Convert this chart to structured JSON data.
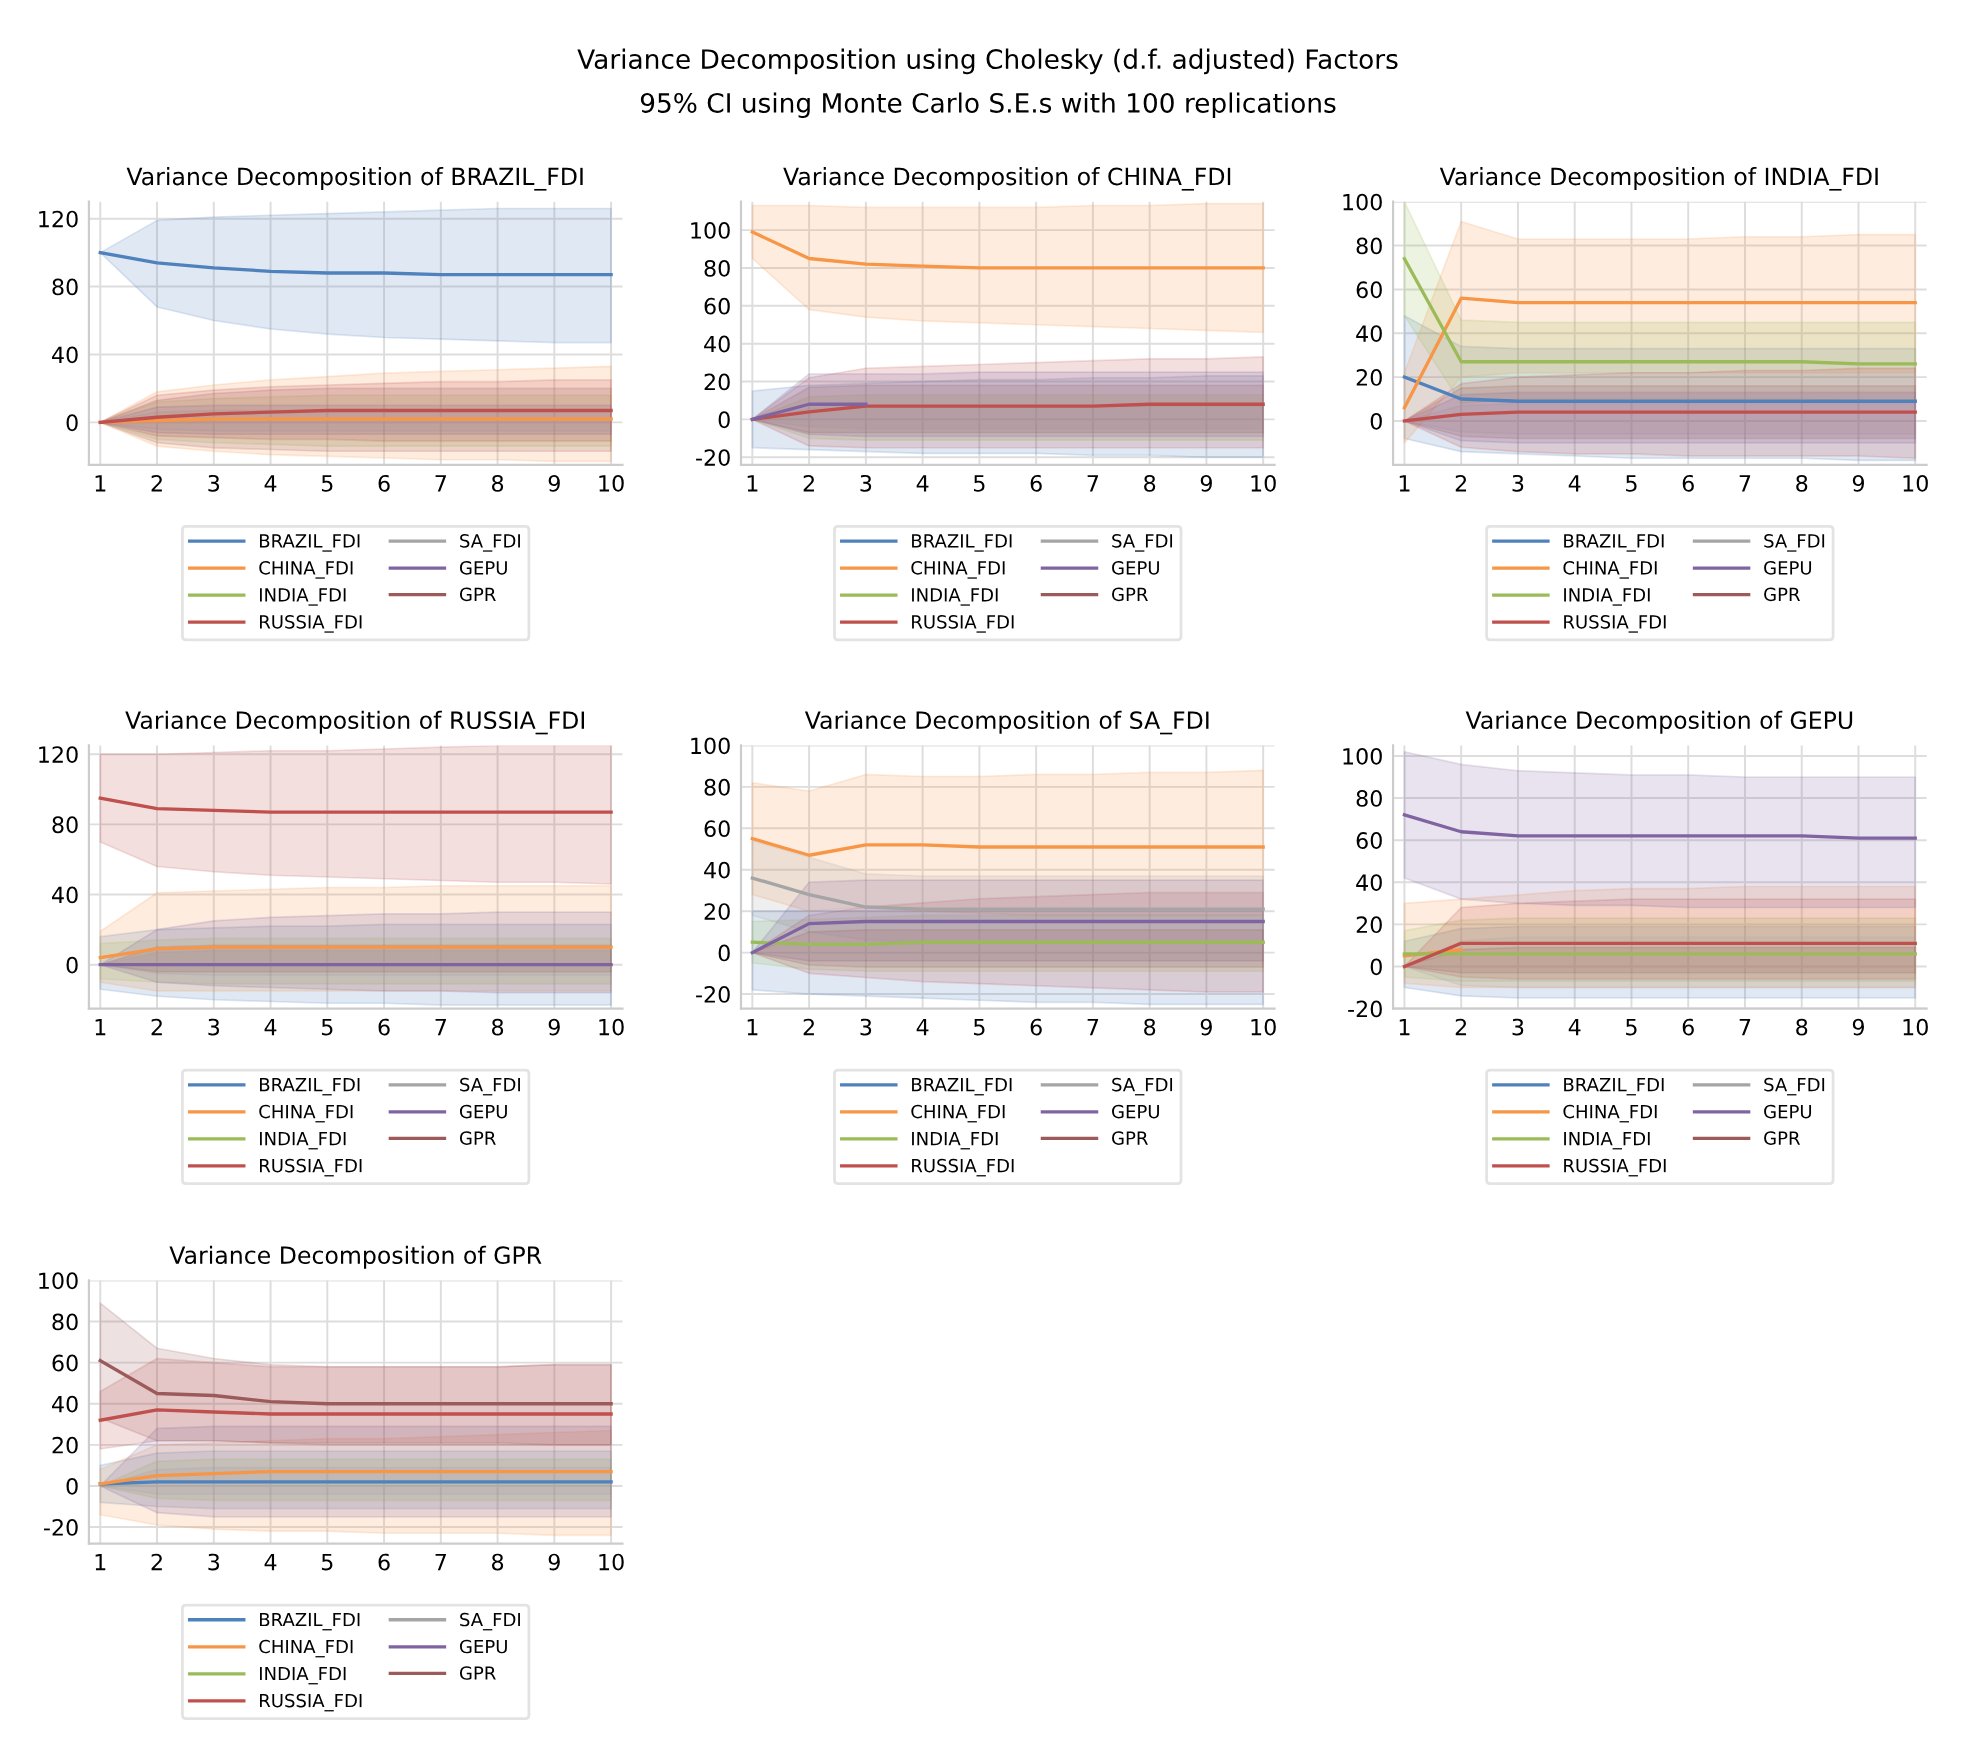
{
  "chart_data": [
    {
      "type": "line",
      "title": "Variance Decomposition of BRAZIL_FDI",
      "annotations": [
        "Variance Decomposition using Cholesky (d.f. adjusted) Factors",
        "95% CI using Monte Carlo S.E.s with 100 replications"
      ],
      "categories": [
        "1",
        "2",
        "3",
        "4",
        "5",
        "6",
        "7",
        "8",
        "9",
        "10"
      ],
      "ylim": [
        -25,
        130
      ],
      "yticks": [
        0,
        40,
        80,
        120
      ],
      "grid": true,
      "legend": "bottom",
      "series": [
        {
          "name": "BRAZIL_FDI",
          "color": "#4f81bd",
          "values": [
            100,
            94,
            91,
            89,
            88,
            88,
            87,
            87,
            87,
            87
          ],
          "lower": [
            100,
            68,
            60,
            55,
            52,
            50,
            49,
            48,
            47,
            47
          ],
          "upper": [
            100,
            119,
            121,
            122,
            123,
            124,
            125,
            126,
            126,
            126
          ]
        },
        {
          "name": "CHINA_FDI",
          "color": "#f79646",
          "values": [
            0,
            1,
            2,
            2,
            2,
            2,
            2,
            2,
            2,
            2
          ],
          "lower": [
            0,
            -14,
            -17,
            -19,
            -20,
            -21,
            -22,
            -22,
            -23,
            -23
          ],
          "upper": [
            0,
            18,
            22,
            25,
            27,
            29,
            30,
            31,
            32,
            33
          ]
        },
        {
          "name": "INDIA_FDI",
          "color": "#9bbb59",
          "values": [
            null,
            null,
            null,
            null,
            null,
            null,
            null,
            null,
            null,
            null
          ],
          "lower": [
            0,
            -10,
            -12,
            -13,
            -14,
            -14,
            -14,
            -14,
            -14,
            -14
          ],
          "upper": [
            0,
            12,
            14,
            15,
            16,
            16,
            16,
            16,
            16,
            16
          ]
        },
        {
          "name": "RUSSIA_FDI",
          "color": "#c0504d",
          "values": [
            0,
            3,
            5,
            6,
            7,
            7,
            7,
            7,
            7,
            7
          ],
          "lower": [
            0,
            -8,
            -9,
            -10,
            -10,
            -11,
            -11,
            -11,
            -11,
            -11
          ],
          "upper": [
            0,
            16,
            19,
            21,
            22,
            23,
            24,
            24,
            25,
            25
          ]
        },
        {
          "name": "SA_FDI",
          "color": "#a5a5a5",
          "values": [
            null,
            null,
            null,
            null,
            null,
            null,
            null,
            null,
            null,
            null
          ],
          "lower": [
            0,
            -4,
            -5,
            -5,
            -5,
            -5,
            -5,
            -5,
            -5,
            -5
          ],
          "upper": [
            0,
            6,
            7,
            7,
            7,
            7,
            7,
            7,
            7,
            7
          ]
        },
        {
          "name": "GEPU",
          "color": "#8064a2",
          "values": [
            null,
            null,
            null,
            null,
            null,
            null,
            null,
            null,
            null,
            null
          ],
          "lower": [
            0,
            -6,
            -7,
            -7,
            -7,
            -7,
            -7,
            -7,
            -7,
            -7
          ],
          "upper": [
            0,
            9,
            10,
            10,
            10,
            10,
            10,
            10,
            10,
            10
          ]
        },
        {
          "name": "GPR",
          "color": "#9c5a5a",
          "values": [
            null,
            null,
            null,
            null,
            null,
            null,
            null,
            null,
            null,
            null
          ],
          "lower": [
            0,
            -12,
            -15,
            -16,
            -17,
            -17,
            -17,
            -17,
            -17,
            -17
          ],
          "upper": [
            0,
            13,
            17,
            19,
            20,
            20,
            20,
            20,
            20,
            20
          ]
        }
      ]
    },
    {
      "type": "line",
      "title": "Variance Decomposition of CHINA_FDI",
      "categories": [
        "1",
        "2",
        "3",
        "4",
        "5",
        "6",
        "7",
        "8",
        "9",
        "10"
      ],
      "ylim": [
        -24,
        115
      ],
      "yticks": [
        -20,
        0,
        20,
        40,
        60,
        80,
        100
      ],
      "grid": true,
      "legend": "bottom",
      "series": [
        {
          "name": "BRAZIL_FDI",
          "color": "#4f81bd",
          "values": [
            null,
            null,
            null,
            null,
            null,
            null,
            null,
            null,
            null,
            null
          ],
          "lower": [
            -15,
            -16,
            -17,
            -18,
            -18,
            -18,
            -19,
            -19,
            -20,
            -20
          ],
          "upper": [
            15,
            18,
            19,
            20,
            21,
            21,
            22,
            22,
            23,
            23
          ]
        },
        {
          "name": "CHINA_FDI",
          "color": "#f79646",
          "values": [
            99,
            85,
            82,
            81,
            80,
            80,
            80,
            80,
            80,
            80
          ],
          "lower": [
            85,
            58,
            54,
            52,
            51,
            50,
            49,
            48,
            47,
            46
          ],
          "upper": [
            113,
            113,
            112,
            112,
            112,
            112,
            113,
            113,
            114,
            114
          ]
        },
        {
          "name": "INDIA_FDI",
          "color": "#9bbb59",
          "values": [
            null,
            null,
            null,
            null,
            null,
            null,
            null,
            null,
            null,
            null
          ],
          "lower": [
            0,
            -10,
            -11,
            -11,
            -11,
            -11,
            -11,
            -11,
            -11,
            -11
          ],
          "upper": [
            0,
            12,
            13,
            13,
            13,
            13,
            13,
            13,
            13,
            13
          ]
        },
        {
          "name": "RUSSIA_FDI",
          "color": "#c0504d",
          "values": [
            0,
            4,
            7,
            7,
            7,
            7,
            7,
            8,
            8,
            8
          ],
          "lower": [
            0,
            -14,
            -15,
            -15,
            -15,
            -15,
            -15,
            -15,
            -15,
            -15
          ],
          "upper": [
            0,
            22,
            27,
            28,
            29,
            30,
            31,
            32,
            32,
            33
          ]
        },
        {
          "name": "SA_FDI",
          "color": "#a5a5a5",
          "values": [
            null,
            null,
            null,
            null,
            null,
            null,
            null,
            null,
            null,
            null
          ],
          "lower": [
            0,
            -4,
            -5,
            -5,
            -5,
            -5,
            -5,
            -5,
            -5,
            -5
          ],
          "upper": [
            0,
            6,
            7,
            7,
            7,
            7,
            7,
            7,
            7,
            7
          ]
        },
        {
          "name": "GEPU",
          "color": "#8064a2",
          "values": [
            0,
            8,
            8,
            null,
            null,
            null,
            null,
            null,
            null,
            null
          ],
          "lower": [
            0,
            -8,
            -9,
            -9,
            -9,
            -9,
            -9,
            -9,
            -9,
            -9
          ],
          "upper": [
            0,
            24,
            24,
            24,
            25,
            25,
            25,
            25,
            25,
            25
          ]
        },
        {
          "name": "GPR",
          "color": "#9c5a5a",
          "values": [
            null,
            null,
            null,
            null,
            null,
            null,
            null,
            null,
            null,
            null
          ],
          "lower": [
            0,
            -7,
            -7,
            -7,
            -7,
            -7,
            -7,
            -7,
            -7,
            -7
          ],
          "upper": [
            0,
            17,
            18,
            18,
            18,
            18,
            18,
            18,
            18,
            18
          ]
        }
      ]
    },
    {
      "type": "line",
      "title": "Variance Decomposition of INDIA_FDI",
      "categories": [
        "1",
        "2",
        "3",
        "4",
        "5",
        "6",
        "7",
        "8",
        "9",
        "10"
      ],
      "ylim": [
        -20,
        100
      ],
      "yticks": [
        0,
        20,
        40,
        60,
        80,
        100
      ],
      "grid": true,
      "legend": "bottom",
      "series": [
        {
          "name": "BRAZIL_FDI",
          "color": "#4f81bd",
          "values": [
            20,
            10,
            9,
            9,
            9,
            9,
            9,
            9,
            9,
            9
          ],
          "lower": [
            -8,
            -14,
            -15,
            -16,
            -17,
            -17,
            -17,
            -17,
            -18,
            -18
          ],
          "upper": [
            48,
            34,
            33,
            33,
            33,
            33,
            33,
            33,
            33,
            33
          ]
        },
        {
          "name": "CHINA_FDI",
          "color": "#f79646",
          "values": [
            6,
            56,
            54,
            54,
            54,
            54,
            54,
            54,
            54,
            54
          ],
          "lower": [
            -10,
            20,
            22,
            22,
            22,
            22,
            22,
            22,
            22,
            22
          ],
          "upper": [
            22,
            91,
            83,
            83,
            83,
            83,
            84,
            84,
            85,
            85
          ]
        },
        {
          "name": "INDIA_FDI",
          "color": "#9bbb59",
          "values": [
            74,
            27,
            27,
            27,
            27,
            27,
            27,
            27,
            26,
            26
          ],
          "lower": [
            48,
            8,
            10,
            10,
            10,
            10,
            10,
            10,
            9,
            9
          ],
          "upper": [
            100,
            46,
            45,
            45,
            45,
            45,
            45,
            45,
            45,
            45
          ]
        },
        {
          "name": "RUSSIA_FDI",
          "color": "#c0504d",
          "values": [
            0,
            3,
            4,
            4,
            4,
            4,
            4,
            4,
            4,
            4
          ],
          "lower": [
            0,
            -12,
            -14,
            -15,
            -15,
            -16,
            -16,
            -16,
            -16,
            -17
          ],
          "upper": [
            0,
            17,
            20,
            21,
            22,
            22,
            23,
            23,
            24,
            24
          ]
        },
        {
          "name": "SA_FDI",
          "color": "#a5a5a5",
          "values": [
            null,
            null,
            null,
            null,
            null,
            null,
            null,
            null,
            null,
            null
          ],
          "lower": [
            0,
            -5,
            -6,
            -6,
            -6,
            -6,
            -6,
            -6,
            -6,
            -6
          ],
          "upper": [
            0,
            7,
            8,
            8,
            8,
            8,
            8,
            8,
            8,
            8
          ]
        },
        {
          "name": "GEPU",
          "color": "#8064a2",
          "values": [
            null,
            null,
            null,
            null,
            null,
            null,
            null,
            null,
            null,
            null
          ],
          "lower": [
            0,
            -9,
            -10,
            -10,
            -10,
            -10,
            -10,
            -10,
            -10,
            -10
          ],
          "upper": [
            0,
            12,
            13,
            13,
            13,
            13,
            13,
            13,
            13,
            13
          ]
        },
        {
          "name": "GPR",
          "color": "#9c5a5a",
          "values": [
            null,
            null,
            null,
            null,
            null,
            null,
            null,
            null,
            null,
            null
          ],
          "lower": [
            0,
            -7,
            -8,
            -8,
            -8,
            -8,
            -8,
            -8,
            -8,
            -8
          ],
          "upper": [
            0,
            15,
            16,
            16,
            16,
            16,
            16,
            16,
            16,
            16
          ]
        }
      ]
    },
    {
      "type": "line",
      "title": "Variance Decomposition of RUSSIA_FDI",
      "categories": [
        "1",
        "2",
        "3",
        "4",
        "5",
        "6",
        "7",
        "8",
        "9",
        "10"
      ],
      "ylim": [
        -25,
        125
      ],
      "yticks": [
        0,
        40,
        80,
        120
      ],
      "grid": true,
      "legend": "bottom",
      "series": [
        {
          "name": "BRAZIL_FDI",
          "color": "#4f81bd",
          "values": [
            null,
            null,
            null,
            null,
            null,
            null,
            null,
            null,
            null,
            null
          ],
          "lower": [
            -14,
            -18,
            -20,
            -21,
            -22,
            -22,
            -23,
            -23,
            -23,
            -23
          ],
          "upper": [
            16,
            20,
            21,
            22,
            22,
            23,
            23,
            23,
            23,
            23
          ]
        },
        {
          "name": "CHINA_FDI",
          "color": "#f79646",
          "values": [
            4,
            9,
            10,
            10,
            10,
            10,
            10,
            10,
            10,
            10
          ],
          "lower": [
            -10,
            -15,
            -15,
            -15,
            -15,
            -15,
            -15,
            -15,
            -15,
            -15
          ],
          "upper": [
            19,
            41,
            42,
            43,
            44,
            44,
            45,
            45,
            45,
            45
          ]
        },
        {
          "name": "INDIA_FDI",
          "color": "#9bbb59",
          "values": [
            null,
            null,
            null,
            null,
            null,
            null,
            null,
            null,
            null,
            null
          ],
          "lower": [
            -8,
            -10,
            -11,
            -11,
            -11,
            -11,
            -11,
            -11,
            -11,
            -11
          ],
          "upper": [
            12,
            14,
            15,
            15,
            15,
            15,
            15,
            15,
            15,
            15
          ]
        },
        {
          "name": "RUSSIA_FDI",
          "color": "#c0504d",
          "values": [
            95,
            89,
            88,
            87,
            87,
            87,
            87,
            87,
            87,
            87
          ],
          "lower": [
            70,
            56,
            53,
            51,
            50,
            49,
            48,
            47,
            47,
            46
          ],
          "upper": [
            120,
            120,
            121,
            122,
            122,
            123,
            124,
            125,
            125,
            125
          ]
        },
        {
          "name": "SA_FDI",
          "color": "#a5a5a5",
          "values": [
            null,
            null,
            null,
            null,
            null,
            null,
            null,
            null,
            null,
            null
          ],
          "lower": [
            0,
            -5,
            -6,
            -6,
            -6,
            -6,
            -6,
            -6,
            -6,
            -6
          ],
          "upper": [
            0,
            7,
            8,
            8,
            8,
            8,
            8,
            8,
            8,
            8
          ]
        },
        {
          "name": "GEPU",
          "color": "#8064a2",
          "values": [
            0,
            0,
            0,
            0,
            0,
            0,
            0,
            0,
            0,
            0
          ],
          "lower": [
            0,
            -10,
            -12,
            -13,
            -14,
            -15,
            -15,
            -16,
            -16,
            -16
          ],
          "upper": [
            0,
            20,
            25,
            27,
            28,
            29,
            29,
            30,
            30,
            30
          ]
        },
        {
          "name": "GPR",
          "color": "#9c5a5a",
          "values": [
            null,
            null,
            null,
            null,
            null,
            null,
            null,
            null,
            null,
            null
          ],
          "lower": [
            0,
            -4,
            -4,
            -4,
            -4,
            -4,
            -4,
            -4,
            -4,
            -4
          ],
          "upper": [
            0,
            10,
            11,
            11,
            11,
            11,
            11,
            11,
            11,
            11
          ]
        }
      ]
    },
    {
      "type": "line",
      "title": "Variance Decomposition of SA_FDI",
      "categories": [
        "1",
        "2",
        "3",
        "4",
        "5",
        "6",
        "7",
        "8",
        "9",
        "10"
      ],
      "ylim": [
        -27,
        100
      ],
      "yticks": [
        -20,
        0,
        20,
        40,
        60,
        80,
        100
      ],
      "grid": true,
      "legend": "bottom",
      "series": [
        {
          "name": "BRAZIL_FDI",
          "color": "#4f81bd",
          "values": [
            null,
            null,
            null,
            null,
            null,
            null,
            null,
            null,
            null,
            null
          ],
          "lower": [
            -18,
            -20,
            -21,
            -22,
            -23,
            -24,
            -24,
            -25,
            -25,
            -25
          ],
          "upper": [
            20,
            20,
            20,
            20,
            20,
            20,
            20,
            20,
            20,
            20
          ]
        },
        {
          "name": "CHINA_FDI",
          "color": "#f79646",
          "values": [
            55,
            47,
            52,
            52,
            51,
            51,
            51,
            51,
            51,
            51
          ],
          "lower": [
            28,
            20,
            22,
            20,
            19,
            18,
            18,
            18,
            18,
            18
          ],
          "upper": [
            82,
            78,
            86,
            85,
            85,
            86,
            86,
            87,
            87,
            88
          ]
        },
        {
          "name": "INDIA_FDI",
          "color": "#9bbb59",
          "values": [
            5,
            4,
            4,
            5,
            5,
            5,
            5,
            5,
            5,
            5
          ],
          "lower": [
            -5,
            -8,
            -9,
            -9,
            -9,
            -9,
            -9,
            -9,
            -9,
            -9
          ],
          "upper": [
            15,
            16,
            17,
            18,
            18,
            18,
            18,
            18,
            18,
            18
          ]
        },
        {
          "name": "RUSSIA_FDI",
          "color": "#c0504d",
          "values": [
            null,
            null,
            null,
            null,
            null,
            null,
            null,
            null,
            null,
            null
          ],
          "lower": [
            0,
            -10,
            -12,
            -14,
            -15,
            -16,
            -17,
            -18,
            -19,
            -19
          ],
          "upper": [
            0,
            18,
            22,
            24,
            26,
            27,
            28,
            29,
            29,
            29
          ]
        },
        {
          "name": "SA_FDI",
          "color": "#a5a5a5",
          "values": [
            36,
            28,
            22,
            21,
            21,
            21,
            21,
            21,
            21,
            21
          ],
          "lower": [
            18,
            10,
            6,
            5,
            5,
            5,
            5,
            5,
            5,
            5
          ],
          "upper": [
            54,
            46,
            38,
            37,
            37,
            37,
            37,
            37,
            37,
            37
          ]
        },
        {
          "name": "GEPU",
          "color": "#8064a2",
          "values": [
            0,
            14,
            15,
            15,
            15,
            15,
            15,
            15,
            15,
            15
          ],
          "lower": [
            0,
            -4,
            -4,
            -4,
            -4,
            -4,
            -4,
            -4,
            -4,
            -4
          ],
          "upper": [
            0,
            34,
            35,
            35,
            35,
            35,
            35,
            35,
            35,
            35
          ]
        },
        {
          "name": "GPR",
          "color": "#9c5a5a",
          "values": [
            null,
            null,
            null,
            null,
            null,
            null,
            null,
            null,
            null,
            null
          ],
          "lower": [
            0,
            -6,
            -7,
            -7,
            -7,
            -7,
            -7,
            -7,
            -7,
            -7
          ],
          "upper": [
            0,
            10,
            11,
            11,
            11,
            11,
            11,
            11,
            11,
            11
          ]
        }
      ]
    },
    {
      "type": "line",
      "title": "Variance Decomposition of GEPU",
      "categories": [
        "1",
        "2",
        "3",
        "4",
        "5",
        "6",
        "7",
        "8",
        "9",
        "10"
      ],
      "ylim": [
        -20,
        105
      ],
      "yticks": [
        -20,
        0,
        20,
        40,
        60,
        80,
        100
      ],
      "grid": true,
      "legend": "bottom",
      "series": [
        {
          "name": "BRAZIL_FDI",
          "color": "#4f81bd",
          "values": [
            null,
            null,
            null,
            null,
            null,
            null,
            null,
            null,
            null,
            null
          ],
          "lower": [
            -10,
            -14,
            -15,
            -15,
            -15,
            -15,
            -15,
            -15,
            -15,
            -15
          ],
          "upper": [
            12,
            18,
            19,
            19,
            19,
            19,
            19,
            19,
            19,
            19
          ]
        },
        {
          "name": "CHINA_FDI",
          "color": "#f79646",
          "values": [
            5,
            8,
            null,
            null,
            null,
            null,
            null,
            null,
            null,
            null
          ],
          "lower": [
            -8,
            -10,
            -10,
            -10,
            -10,
            -10,
            -10,
            -10,
            -10,
            -10
          ],
          "upper": [
            30,
            32,
            34,
            36,
            37,
            37,
            38,
            38,
            38,
            38
          ]
        },
        {
          "name": "INDIA_FDI",
          "color": "#9bbb59",
          "values": [
            6,
            6,
            6,
            6,
            6,
            6,
            6,
            6,
            6,
            6
          ],
          "lower": [
            -5,
            -7,
            -7,
            -7,
            -7,
            -7,
            -7,
            -7,
            -7,
            -7
          ],
          "upper": [
            17,
            22,
            23,
            23,
            23,
            23,
            23,
            23,
            23,
            23
          ]
        },
        {
          "name": "RUSSIA_FDI",
          "color": "#c0504d",
          "values": [
            0,
            11,
            11,
            11,
            11,
            11,
            11,
            11,
            11,
            11
          ],
          "lower": [
            0,
            -5,
            -6,
            -6,
            -6,
            -6,
            -6,
            -6,
            -6,
            -6
          ],
          "upper": [
            0,
            28,
            30,
            31,
            32,
            32,
            32,
            32,
            32,
            32
          ]
        },
        {
          "name": "SA_FDI",
          "color": "#a5a5a5",
          "values": [
            null,
            null,
            null,
            null,
            null,
            null,
            null,
            null,
            null,
            null
          ],
          "lower": [
            0,
            -9,
            -10,
            -10,
            -10,
            -10,
            -10,
            -10,
            -10,
            -10
          ],
          "upper": [
            0,
            12,
            14,
            14,
            14,
            14,
            14,
            14,
            14,
            14
          ]
        },
        {
          "name": "GEPU",
          "color": "#8064a2",
          "values": [
            72,
            64,
            62,
            62,
            62,
            62,
            62,
            62,
            61,
            61
          ],
          "lower": [
            42,
            32,
            30,
            29,
            29,
            28,
            28,
            28,
            28,
            28
          ],
          "upper": [
            102,
            96,
            93,
            92,
            91,
            91,
            90,
            90,
            90,
            90
          ]
        },
        {
          "name": "GPR",
          "color": "#9c5a5a",
          "values": [
            null,
            null,
            null,
            null,
            null,
            null,
            null,
            null,
            null,
            null
          ],
          "lower": [
            0,
            -3,
            -3,
            -3,
            -3,
            -3,
            -3,
            -3,
            -3,
            -3
          ],
          "upper": [
            0,
            8,
            9,
            9,
            9,
            9,
            9,
            9,
            9,
            9
          ]
        }
      ]
    },
    {
      "type": "line",
      "title": "Variance Decomposition of GPR",
      "categories": [
        "1",
        "2",
        "3",
        "4",
        "5",
        "6",
        "7",
        "8",
        "9",
        "10"
      ],
      "ylim": [
        -28,
        100
      ],
      "yticks": [
        -20,
        0,
        20,
        40,
        60,
        80,
        100
      ],
      "grid": true,
      "legend": "bottom",
      "series": [
        {
          "name": "BRAZIL_FDI",
          "color": "#4f81bd",
          "values": [
            1,
            2,
            2,
            2,
            2,
            2,
            2,
            2,
            2,
            2
          ],
          "lower": [
            -8,
            -10,
            -11,
            -11,
            -11,
            -11,
            -11,
            -11,
            -11,
            -11
          ],
          "upper": [
            10,
            16,
            17,
            17,
            17,
            17,
            17,
            17,
            17,
            17
          ]
        },
        {
          "name": "CHINA_FDI",
          "color": "#f79646",
          "values": [
            1,
            5,
            6,
            7,
            7,
            7,
            7,
            7,
            7,
            7
          ],
          "lower": [
            -14,
            -19,
            -21,
            -22,
            -22,
            -23,
            -23,
            -23,
            -24,
            -24
          ],
          "upper": [
            8,
            20,
            21,
            22,
            23,
            23,
            24,
            25,
            26,
            27
          ]
        },
        {
          "name": "INDIA_FDI",
          "color": "#9bbb59",
          "values": [
            null,
            null,
            null,
            null,
            null,
            null,
            null,
            null,
            null,
            null
          ],
          "lower": [
            0,
            -6,
            -7,
            -7,
            -7,
            -7,
            -7,
            -7,
            -7,
            -7
          ],
          "upper": [
            0,
            12,
            13,
            13,
            13,
            13,
            13,
            13,
            13,
            13
          ]
        },
        {
          "name": "RUSSIA_FDI",
          "color": "#c0504d",
          "values": [
            32,
            37,
            36,
            35,
            35,
            35,
            35,
            35,
            35,
            35
          ],
          "lower": [
            18,
            22,
            22,
            21,
            21,
            21,
            21,
            21,
            20,
            20
          ],
          "upper": [
            46,
            62,
            60,
            58,
            58,
            58,
            58,
            58,
            59,
            59
          ]
        },
        {
          "name": "SA_FDI",
          "color": "#a5a5a5",
          "values": [
            null,
            null,
            null,
            null,
            null,
            null,
            null,
            null,
            null,
            null
          ],
          "lower": [
            0,
            -4,
            -4,
            -4,
            -4,
            -4,
            -4,
            -4,
            -4,
            -4
          ],
          "upper": [
            0,
            8,
            9,
            9,
            9,
            9,
            9,
            9,
            9,
            9
          ]
        },
        {
          "name": "GEPU",
          "color": "#8064a2",
          "values": [
            null,
            null,
            null,
            null,
            null,
            null,
            null,
            null,
            null,
            null
          ],
          "lower": [
            0,
            -13,
            -15,
            -15,
            -15,
            -15,
            -15,
            -15,
            -15,
            -15
          ],
          "upper": [
            0,
            28,
            29,
            29,
            29,
            29,
            29,
            29,
            29,
            29
          ]
        },
        {
          "name": "GPR",
          "color": "#9c5a5a",
          "values": [
            61,
            45,
            44,
            41,
            40,
            40,
            40,
            40,
            40,
            40
          ],
          "lower": [
            33,
            22,
            22,
            21,
            20,
            20,
            20,
            20,
            20,
            20
          ],
          "upper": [
            89,
            67,
            62,
            59,
            58,
            58,
            58,
            58,
            59,
            59
          ]
        }
      ]
    }
  ]
}
